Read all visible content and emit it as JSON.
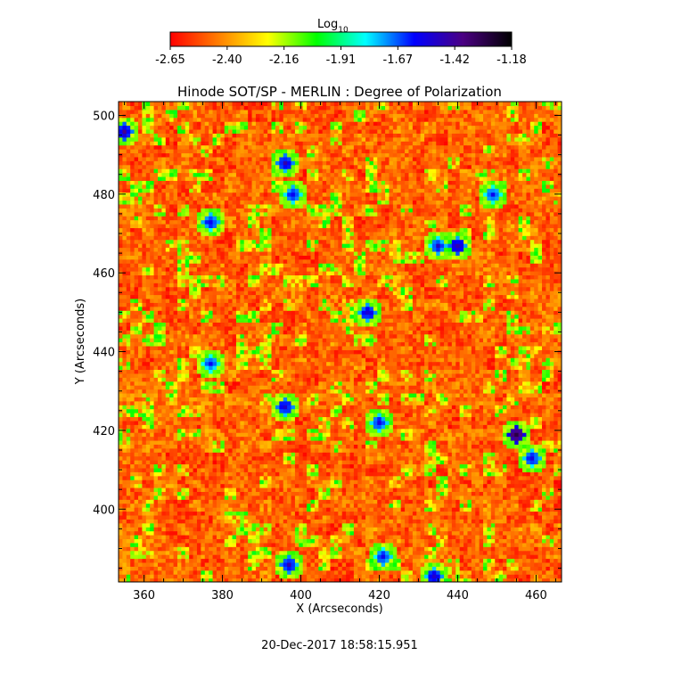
{
  "colorbar": {
    "label_main": "Log",
    "label_sub": "10",
    "ticks": [
      "-2.65",
      "-2.40",
      "-2.16",
      "-1.91",
      "-1.67",
      "-1.42",
      "-1.18"
    ],
    "colors": [
      "#ff0000",
      "#ff7f00",
      "#ffff00",
      "#00ff00",
      "#00ffff",
      "#0000ff",
      "#4b0082",
      "#000000"
    ]
  },
  "timestamp": "20-Dec-2017 18:58:15.951",
  "chart_data": {
    "type": "heatmap",
    "title": "Hinode SOT/SP - MERLIN : Degree of Polarization",
    "xlabel": "X (Arcseconds)",
    "ylabel": "Y (Arcseconds)",
    "xlim": [
      353.5,
      466.5
    ],
    "ylim": [
      381.5,
      503.5
    ],
    "xticks": [
      360,
      380,
      400,
      420,
      440,
      460
    ],
    "yticks": [
      400,
      420,
      440,
      460,
      480,
      500
    ],
    "value_range_log10": [
      -2.65,
      -1.18
    ],
    "value_label": "Log10 Degree of Polarization",
    "dominant_value_range": [
      -2.65,
      -2.3
    ],
    "strong_patches": [
      {
        "x": 355,
        "y": 496,
        "value": -1.4
      },
      {
        "x": 396,
        "y": 488,
        "value": -1.45
      },
      {
        "x": 398,
        "y": 480,
        "value": -1.5
      },
      {
        "x": 377,
        "y": 473,
        "value": -1.5
      },
      {
        "x": 417,
        "y": 450,
        "value": -1.45
      },
      {
        "x": 435,
        "y": 467,
        "value": -1.5
      },
      {
        "x": 440,
        "y": 467,
        "value": -1.42
      },
      {
        "x": 449,
        "y": 480,
        "value": -1.55
      },
      {
        "x": 396,
        "y": 426,
        "value": -1.45
      },
      {
        "x": 420,
        "y": 422,
        "value": -1.5
      },
      {
        "x": 455,
        "y": 419,
        "value": -1.25
      },
      {
        "x": 459,
        "y": 413,
        "value": -1.5
      },
      {
        "x": 377,
        "y": 437,
        "value": -1.55
      },
      {
        "x": 397,
        "y": 386,
        "value": -1.45
      },
      {
        "x": 421,
        "y": 388,
        "value": -1.5
      },
      {
        "x": 434,
        "y": 383,
        "value": -1.45
      }
    ]
  }
}
